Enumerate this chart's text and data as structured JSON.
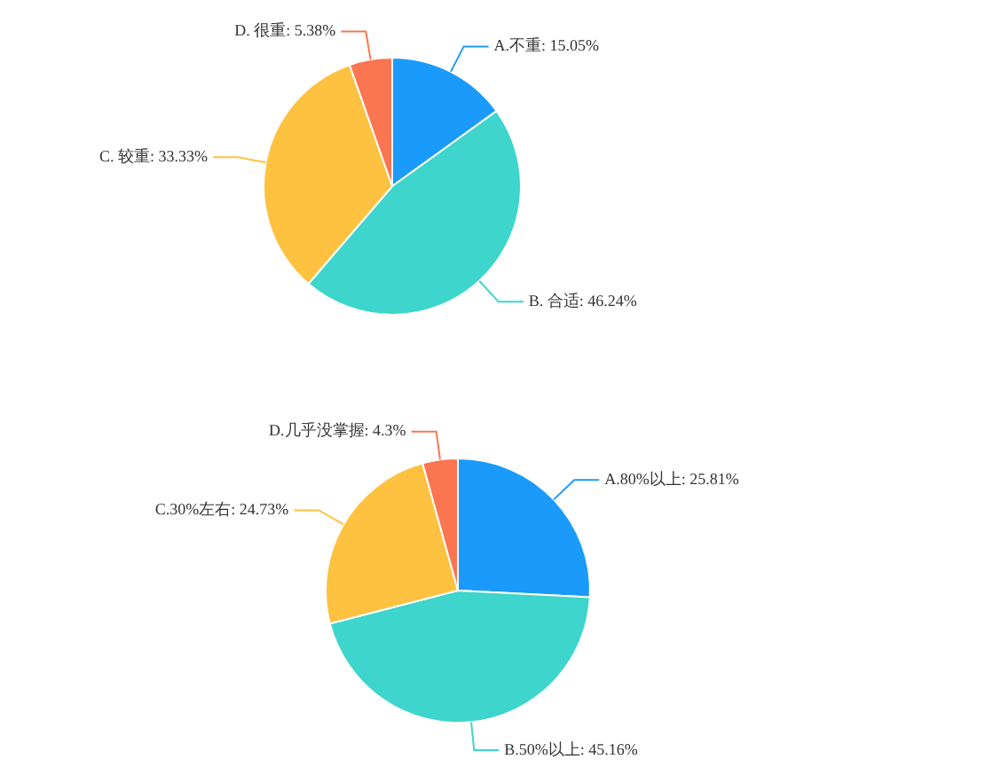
{
  "chart_data": [
    {
      "type": "pie",
      "categories": [
        "A.不重",
        "B. 合适",
        "C. 较重",
        "D. 很重"
      ],
      "values": [
        15.05,
        46.24,
        33.33,
        5.38
      ],
      "value_labels": [
        "15.05%",
        "46.24%",
        "33.33%",
        "5.38%"
      ],
      "colors": [
        "#1a9bfc",
        "#3dd5cc",
        "#fec240",
        "#fb7550"
      ],
      "legend": false
    },
    {
      "type": "pie",
      "categories": [
        "A.80%以上",
        "B.50%以上",
        "C.30%左右",
        "D.几乎没掌握"
      ],
      "values": [
        25.81,
        45.16,
        24.73,
        4.3
      ],
      "value_labels": [
        "25.81%",
        "45.16%",
        "24.73%",
        "4.3%"
      ],
      "colors": [
        "#1a9bfc",
        "#3dd5cc",
        "#fec240",
        "#fb7550"
      ],
      "legend": false
    }
  ]
}
